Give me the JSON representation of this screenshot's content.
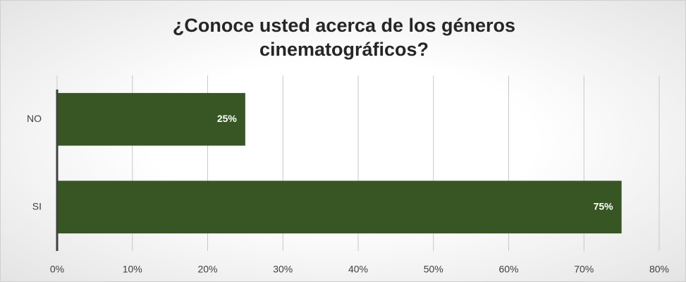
{
  "chart_data": {
    "type": "hbar",
    "title": "¿Conoce usted acerca de los géneros cinematográficos?",
    "categories": [
      "NO",
      "SI"
    ],
    "values": [
      25,
      75
    ],
    "value_labels": [
      "25%",
      "75%"
    ],
    "color": "#375623",
    "xlim": [
      0,
      80
    ],
    "xticks": [
      {
        "value": 0,
        "label": "0%"
      },
      {
        "value": 10,
        "label": "10%"
      },
      {
        "value": 20,
        "label": "20%"
      },
      {
        "value": 30,
        "label": "30%"
      },
      {
        "value": 40,
        "label": "40%"
      },
      {
        "value": 50,
        "label": "50%"
      },
      {
        "value": 60,
        "label": "60%"
      },
      {
        "value": 70,
        "label": "70%"
      },
      {
        "value": 80,
        "label": "80%"
      }
    ],
    "grid": true
  }
}
